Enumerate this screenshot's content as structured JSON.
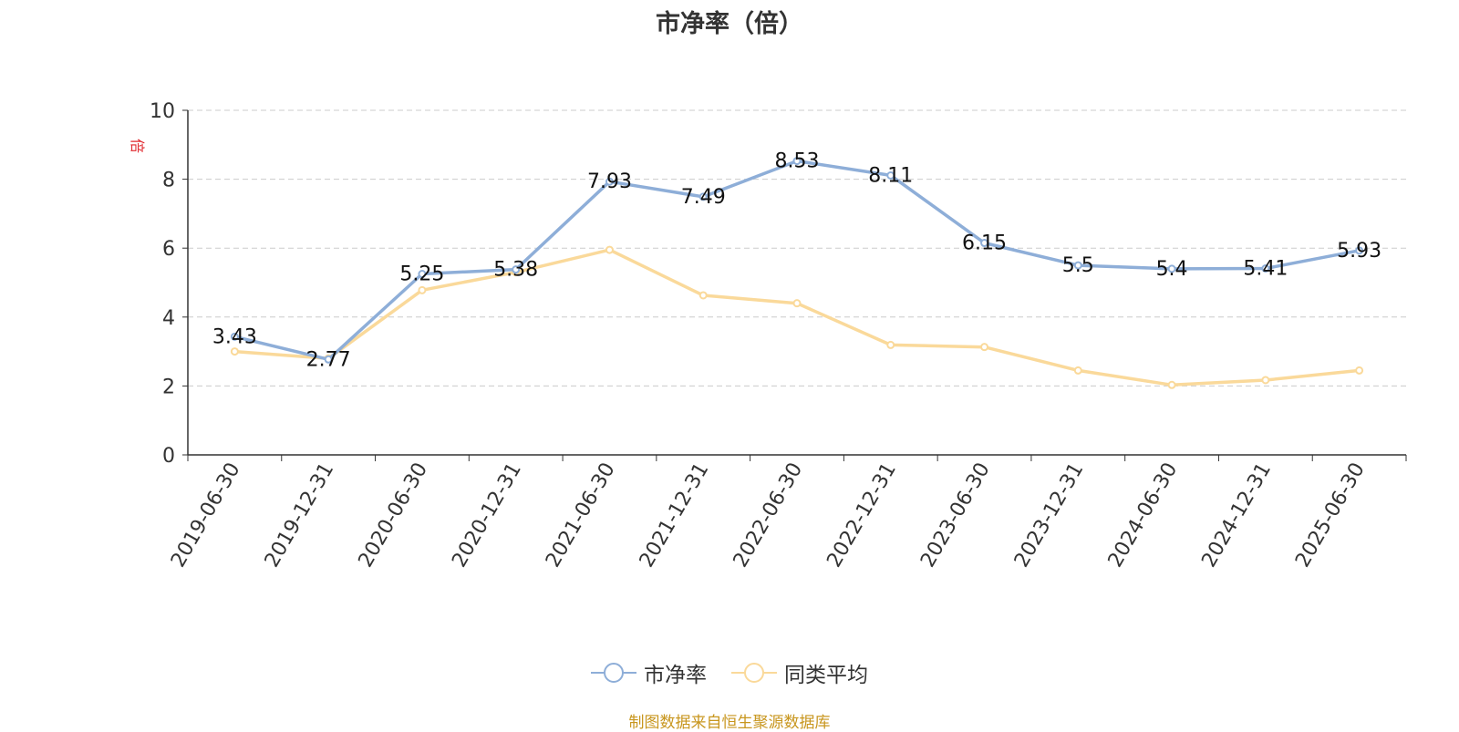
{
  "chart_data": {
    "type": "line",
    "title": "市净率（倍）",
    "ylabel": "倍",
    "ylim": [
      0,
      10
    ],
    "yticks": [
      0,
      2,
      4,
      6,
      8,
      10
    ],
    "x": [
      "2019-06-30",
      "2019-12-31",
      "2020-06-30",
      "2020-12-31",
      "2021-06-30",
      "2021-12-31",
      "2022-06-30",
      "2022-12-31",
      "2023-06-30",
      "2023-12-31",
      "2024-06-30",
      "2024-12-31",
      "2025-06-30"
    ],
    "series": [
      {
        "name": "市净率",
        "color": "#8eaed8",
        "values": [
          3.43,
          2.77,
          5.25,
          5.38,
          7.93,
          7.49,
          8.53,
          8.11,
          6.15,
          5.5,
          5.4,
          5.41,
          5.93
        ],
        "labels": [
          "3.43",
          "2.77",
          "5.25",
          "5.38",
          "7.93",
          "7.49",
          "8.53",
          "8.11",
          "6.15",
          "5.5",
          "5.4",
          "5.41",
          "5.93"
        ]
      },
      {
        "name": "同类平均",
        "color": "#fad99a",
        "values": [
          3.0,
          2.8,
          4.78,
          5.3,
          5.95,
          4.63,
          4.4,
          3.19,
          3.13,
          2.45,
          2.03,
          2.17,
          2.45
        ]
      }
    ],
    "grid": true,
    "legend_position": "bottom-center",
    "source": "制图数据来自恒生聚源数据库"
  }
}
